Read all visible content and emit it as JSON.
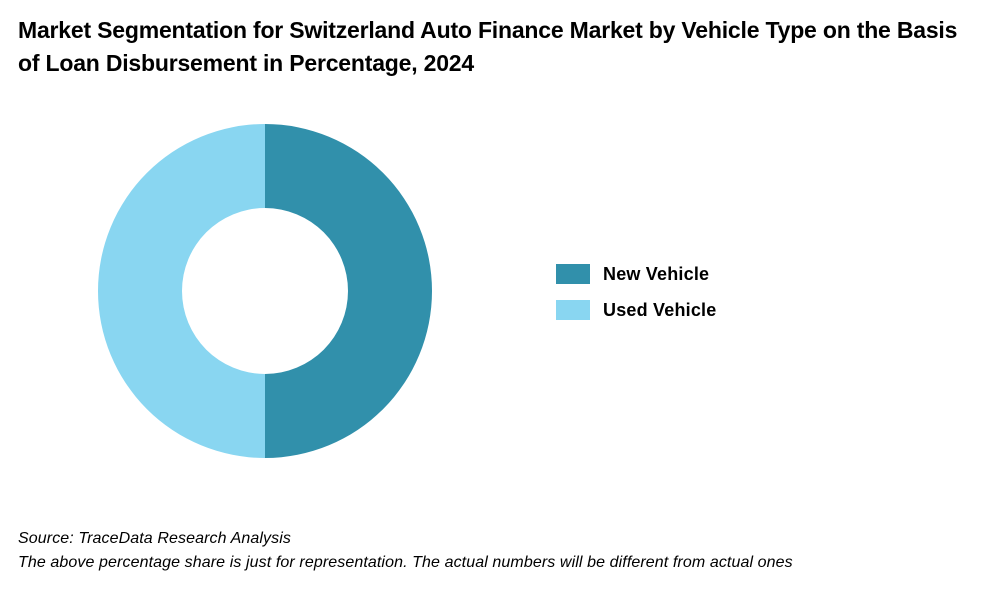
{
  "chart_data": {
    "type": "pie",
    "variant": "donut",
    "title": "Market Segmentation for Switzerland Auto Finance Market by Vehicle Type on the Basis of Loan Disbursement in Percentage, 2024",
    "categories": [
      "New Vehicle",
      "Used Vehicle"
    ],
    "values": [
      50,
      50
    ],
    "unit": "%",
    "colors": [
      "#3190ab",
      "#89d6f1"
    ],
    "legend_position": "right"
  },
  "footnotes": {
    "source": "Source: TraceData Research Analysis",
    "disclaimer": "The above percentage share is just for representation. The actual numbers will be different from actual ones"
  }
}
